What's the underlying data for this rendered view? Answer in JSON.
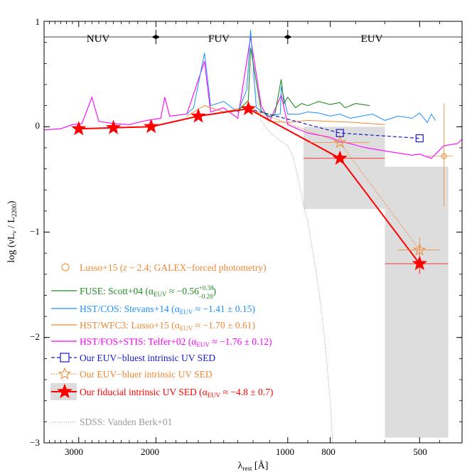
{
  "chart_data": {
    "type": "line",
    "title": "",
    "xlabel": "λ_rest [Å]",
    "ylabel": "log (νL_ν / L_2200)",
    "x_scale": "log",
    "xlim": [
      3600,
      400
    ],
    "ylim": [
      -3,
      1
    ],
    "x_ticks": [
      3000,
      2000,
      1000,
      800,
      500
    ],
    "y_ticks": [
      1,
      0,
      -1,
      -2,
      -3
    ],
    "bands": [
      {
        "label": "NUV",
        "x_range": [
          3600,
          2000
        ]
      },
      {
        "label": "FUV",
        "x_range": [
          2000,
          1000
        ]
      },
      {
        "label": "EUV",
        "x_range": [
          1000,
          400
        ]
      }
    ],
    "series": [
      {
        "name": "fiducial",
        "label": "Our fiducial intrinsic UV SED (α_EUV ≈ −4.8 ± 0.7)",
        "color": "#ff0000",
        "style": "solid-star",
        "x": [
          3000,
          2500,
          2050,
          1600,
          1230,
          760,
          500
        ],
        "y": [
          -0.02,
          -0.01,
          0.0,
          0.1,
          0.17,
          -0.3,
          -1.3
        ]
      },
      {
        "name": "bluer",
        "label": "Our EUV−bluer intrinsic UV SED",
        "color": "#ee8833",
        "style": "dotted-open-star",
        "x": [
          1230,
          760,
          500
        ],
        "y": [
          0.17,
          -0.15,
          -1.17
        ]
      },
      {
        "name": "bluest",
        "label": "Our EUV−bluest intrinsic UV SED",
        "color": "#1a1acc",
        "style": "dashed-open-square",
        "x": [
          1230,
          760,
          500
        ],
        "y": [
          0.17,
          -0.06,
          -0.11
        ]
      },
      {
        "name": "lusso_photometry",
        "label": "Lusso+15 (z ~ 2.4; GALEX−forced photometry)",
        "color": "#ee8833",
        "style": "open-circle",
        "x": [
          440
        ],
        "y": [
          -0.28
        ]
      },
      {
        "name": "fuse",
        "label": "FUSE: Scott+04",
        "color": "#228b22",
        "style": "spectrum",
        "x": [
          1300,
          1230,
          1216,
          1150,
          1100,
          1070,
          1035,
          1020,
          1000,
          960,
          930,
          900,
          850,
          800,
          760,
          740,
          700,
          650
        ],
        "y": [
          0.15,
          0.25,
          0.75,
          0.15,
          0.09,
          0.12,
          0.45,
          0.22,
          0.28,
          0.18,
          0.22,
          0.2,
          0.24,
          0.21,
          0.23,
          0.18,
          0.22,
          0.2
        ]
      },
      {
        "name": "cos",
        "label": "HST/COS: Stevans+14",
        "color": "#1e90ff",
        "style": "spectrum",
        "x": [
          1700,
          1640,
          1549,
          1500,
          1400,
          1300,
          1240,
          1216,
          1180,
          1100,
          1040,
          1035,
          1000,
          940,
          900,
          850,
          800,
          760,
          720,
          680,
          640,
          600,
          560,
          520,
          500,
          480,
          470,
          460
        ],
        "y": [
          0.12,
          0.18,
          0.7,
          0.2,
          0.24,
          0.14,
          0.35,
          0.92,
          0.18,
          0.1,
          0.12,
          0.38,
          0.12,
          0.12,
          0.14,
          0.13,
          0.1,
          0.12,
          0.08,
          0.1,
          0.12,
          0.06,
          0.1,
          0.08,
          0.13,
          0.04,
          0.12,
          0.06
        ]
      },
      {
        "name": "wfc3",
        "label": "HST/WFC3: Lusso+15",
        "color": "#ee8833",
        "style": "spectrum",
        "x": [
          1700,
          1549,
          1400,
          1216,
          1150,
          1100,
          1000,
          900,
          800,
          700,
          600
        ],
        "y": [
          0.1,
          0.2,
          0.14,
          0.2,
          0.1,
          0.05,
          0.04,
          0.06,
          0.05,
          0.04,
          0.02
        ]
      },
      {
        "name": "telfer",
        "label": "HST/FOS+STIS: Telfer+02",
        "color": "#ff00ff",
        "style": "spectrum",
        "x": [
          3600,
          3300,
          3100,
          2950,
          2800,
          2700,
          2500,
          2300,
          2100,
          1950,
          1909,
          1860,
          1700,
          1549,
          1500,
          1400,
          1300,
          1216,
          1150,
          1100,
          1035,
          1000,
          950,
          900,
          850,
          800,
          760,
          720,
          680,
          640,
          600,
          560,
          520,
          500,
          470,
          440,
          410,
          400
        ],
        "y": [
          -0.03,
          -0.02,
          0.02,
          0.03,
          0.28,
          0.05,
          0.03,
          0.02,
          0.06,
          0.08,
          0.28,
          0.1,
          0.12,
          0.62,
          0.14,
          0.18,
          0.08,
          0.85,
          0.2,
          0.05,
          0.3,
          0.02,
          -0.02,
          -0.06,
          -0.08,
          -0.1,
          -0.14,
          -0.16,
          -0.19,
          -0.21,
          -0.23,
          -0.25,
          -0.27,
          -0.26,
          -0.3,
          -0.18,
          -0.16,
          -0.12
        ]
      },
      {
        "name": "sdss",
        "label": "SDSS: Vanden Berk+01",
        "color": "#999999",
        "style": "dotted-spectrum",
        "x": [
          1300,
          1216,
          1150,
          1100,
          1050,
          1000,
          970,
          940,
          920,
          900,
          880,
          860,
          840,
          820,
          800,
          790,
          780
        ],
        "y": [
          0.1,
          0.6,
          0.05,
          -0.05,
          -0.12,
          -0.18,
          -0.3,
          -0.55,
          -0.75,
          -0.9,
          -1.15,
          -1.4,
          -1.7,
          -2.1,
          -2.6,
          -3.0,
          -3.0
        ]
      }
    ],
    "shaded_regions": [
      {
        "x_range": [
          920,
          600
        ],
        "y_range": [
          -0.78,
          0.0
        ]
      },
      {
        "x_range": [
          600,
          430
        ],
        "y_range": [
          -2.95,
          -0.38
        ]
      }
    ],
    "legend": {
      "placement": "lower-left",
      "entries": [
        "Lusso+15 (z ~ 2.4; GALEX−forced photometry)",
        "FUSE: Scott+04 (α_EUV ≈ −0.56 +0.38/−0.28)",
        "HST/COS: Stevans+14 (α_EUV ≈ −1.41 ± 0.15)",
        "HST/WFC3: Lusso+15 (α_EUV ≈ −1.70 ± 0.61)",
        "HST/FOS+STIS: Telfer+02 (α_EUV ≈ −1.76 ± 0.12)",
        "Our EUV−bluest intrinsic UV SED",
        "Our EUV−bluer intrinsic UV SED",
        "Our fiducial intrinsic UV SED (α_EUV ≈ −4.8 ± 0.7)",
        "SDSS: Vanden Berk+01"
      ]
    }
  },
  "colors": {
    "fiducial": "#ff0000",
    "orange": "#ee8833",
    "blue": "#1a1acc",
    "cos": "#1e90ff",
    "fuse": "#228b22",
    "telfer": "#ff00ff",
    "sdss": "#999999",
    "shade": "#dddddd"
  },
  "texts": {
    "y_tick_labels": [
      "1",
      "0",
      "−1",
      "−2",
      "−3"
    ],
    "x_tick_labels": [
      "3000",
      "2000",
      "1000",
      "800",
      "500"
    ],
    "band_labels": [
      "NUV",
      "FUV",
      "EUV"
    ],
    "xlabel_main": "λ",
    "xlabel_sub": "rest",
    "xlabel_unit": " [Å]",
    "ylabel_a": "log (νL",
    "ylabel_nu": "ν",
    "ylabel_b": " / L",
    "ylabel_sub": "2200",
    "ylabel_c": ")",
    "leg_lusso_a": "Lusso+15 (",
    "leg_lusso_z": "z",
    "leg_lusso_b": " ~ 2.4; GALEX−forced photometry)",
    "leg_fuse_a": "FUSE: Scott+04 (α",
    "leg_fuse_b": " ≈ −0.56",
    "leg_fuse_up": "+0.38",
    "leg_fuse_dn": "−0.28",
    "leg_fuse_c": ")",
    "leg_cos_a": "HST/COS: Stevans+14 (α",
    "leg_cos_b": " ≈ −1.41 ± 0.15)",
    "leg_wfc3_a": "HST/WFC3: Lusso+15 (α",
    "leg_wfc3_b": " ≈ −1.70 ± 0.61)",
    "leg_telfer_a": "HST/FOS+STIS: Telfer+02 (α",
    "leg_telfer_b": " ≈ −1.76 ± 0.12)",
    "leg_bluest": "Our EUV−bluest intrinsic UV SED",
    "leg_bluer": "Our EUV−bluer intrinsic UV SED",
    "leg_fid_a": "Our fiducial intrinsic UV SED (α",
    "leg_fid_b": " ≈ −4.8 ± 0.7)",
    "leg_sdss": "SDSS: Vanden Berk+01",
    "euv_sub": "EUV"
  }
}
